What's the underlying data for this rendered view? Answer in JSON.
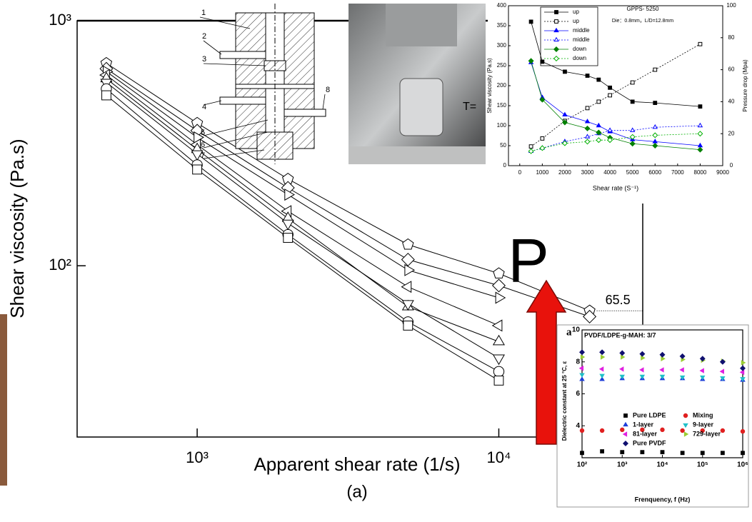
{
  "chart_data": [
    {
      "type": "line",
      "y_label": "Shear viscosity (Pa.s)",
      "x_label": "Apparent shear rate (1/s)",
      "caption": "(a)",
      "xscale": "log",
      "yscale": "log",
      "xlim": [
        400,
        30000
      ],
      "ylim": [
        20,
        1000
      ],
      "xticks": [
        {
          "value": 1000,
          "label": "10³"
        },
        {
          "value": 10000,
          "label": "10⁴"
        }
      ],
      "yticks": [
        {
          "value": 100,
          "label": "10²"
        },
        {
          "value": 1000,
          "label": "10³"
        }
      ],
      "x": [
        500,
        1000,
        2000,
        5000,
        10000,
        20000
      ],
      "series": [
        {
          "color": "#000000",
          "marker": "pentagon",
          "values": [
            671,
            382,
            226,
            122,
            93,
            65.5
          ]
        },
        {
          "color": "#000000",
          "marker": "diamond",
          "values": [
            637,
            356,
            208,
            106,
            83,
            62
          ]
        },
        {
          "color": "#000000",
          "marker": "triangle-right",
          "values": [
            620,
            334,
            195,
            96,
            74,
            null
          ]
        },
        {
          "color": "#000000",
          "marker": "triangle-left",
          "values": [
            600,
            312,
            167,
            82,
            57,
            null
          ]
        },
        {
          "color": "#000000",
          "marker": "triangle-up",
          "values": [
            580,
            298,
            156,
            68,
            49,
            null
          ]
        },
        {
          "color": "#000000",
          "marker": "triangle-down",
          "values": [
            560,
            286,
            149,
            70,
            42,
            null
          ]
        },
        {
          "color": "#000000",
          "marker": "circle",
          "values": [
            527,
            258,
            134,
            59,
            37,
            null
          ]
        },
        {
          "color": "#000000",
          "marker": "square",
          "values": [
            496,
            247,
            130,
            57,
            34,
            null
          ]
        }
      ]
    },
    {
      "type": "line",
      "title": "GPPS- 5250",
      "subtitle": "Die：0.8mm，L/D=12.8mm",
      "x_label": "Shear rate (S⁻¹)",
      "y_label": "Shear viscosity (Pa.s)",
      "y2_label": "Pressure drop (Mpa)",
      "xlim": [
        -500,
        9000
      ],
      "ylim": [
        0,
        400
      ],
      "y2lim": [
        0,
        100
      ],
      "xticks": [
        0,
        1000,
        2000,
        3000,
        4000,
        5000,
        6000,
        7000,
        8000,
        9000
      ],
      "yticks": [
        0,
        50,
        100,
        150,
        200,
        250,
        300,
        350,
        400
      ],
      "y2ticks": [
        0,
        20,
        40,
        60,
        80,
        100
      ],
      "x": [
        500,
        1000,
        2000,
        3000,
        3500,
        4000,
        5000,
        6000,
        8000
      ],
      "series": [
        {
          "name": "up",
          "color": "#000000",
          "marker": "square",
          "marker_fill": "filled",
          "values": [
            360,
            260,
            235,
            225,
            215,
            195,
            160,
            157,
            148
          ]
        },
        {
          "name": "up",
          "color": "#000000",
          "marker": "square",
          "marker_fill": "open",
          "axis": "y2",
          "values": [
            12,
            17,
            28,
            36,
            40,
            44,
            52,
            60,
            76
          ]
        },
        {
          "name": "middle",
          "color": "#0000ff",
          "marker": "triangle-up",
          "marker_fill": "filled",
          "values": [
            258,
            170,
            127,
            110,
            100,
            85,
            65,
            60,
            50
          ]
        },
        {
          "name": "middle",
          "color": "#0000ff",
          "marker": "triangle-up",
          "marker_fill": "open",
          "axis": "y2",
          "values": [
            9,
            11,
            15,
            18,
            20,
            22,
            22,
            24,
            25
          ]
        },
        {
          "name": "down",
          "color": "#008000",
          "marker": "diamond",
          "marker_fill": "filled",
          "values": [
            262,
            165,
            108,
            93,
            83,
            70,
            55,
            50,
            40
          ]
        },
        {
          "name": "down",
          "color": "#00b000",
          "marker": "diamond",
          "marker_fill": "open",
          "axis": "y2",
          "values": [
            9,
            11,
            14,
            15,
            16,
            16,
            18,
            19,
            20
          ]
        }
      ]
    },
    {
      "type": "scatter",
      "panel_letter": "a",
      "title": "PVDF/LDPE-g-MAH: 3/7",
      "x_label": "Frenquency, f (Hz)",
      "y_label": "Dielectric constant at 25 °C, ε",
      "xscale": "log",
      "xlim": [
        100,
        1000000
      ],
      "ylim": [
        2,
        10
      ],
      "xticks": [
        {
          "value": 100,
          "label": "10²"
        },
        {
          "value": 1000,
          "label": "10³"
        },
        {
          "value": 10000,
          "label": "10⁴"
        },
        {
          "value": 100000,
          "label": "10⁵"
        },
        {
          "value": 1000000,
          "label": "10⁶"
        }
      ],
      "yticks": [
        4,
        6,
        8,
        10
      ],
      "x": [
        100,
        316,
        1000,
        3162,
        10000,
        31623,
        100000,
        316228,
        1000000
      ],
      "series": [
        {
          "name": "Pure LDPE",
          "color": "#000000",
          "marker": "square",
          "values": [
            2.3,
            2.4,
            2.35,
            2.35,
            2.35,
            2.3,
            2.3,
            2.3,
            2.3
          ]
        },
        {
          "name": "Mixing",
          "color": "#e02020",
          "marker": "circle",
          "values": [
            3.7,
            3.7,
            3.75,
            3.75,
            3.75,
            3.7,
            3.7,
            3.7,
            3.65
          ]
        },
        {
          "name": "1-layer",
          "color": "#1f3fd8",
          "marker": "triangle-up",
          "values": [
            6.9,
            6.9,
            6.95,
            6.95,
            6.95,
            6.95,
            6.9,
            6.9,
            6.85
          ]
        },
        {
          "name": "9-layer",
          "color": "#20c0c8",
          "marker": "triangle-down",
          "values": [
            7.2,
            7.15,
            7.1,
            7.1,
            7.1,
            7.05,
            7.05,
            7.0,
            6.95
          ]
        },
        {
          "name": "81-layer",
          "color": "#e020e0",
          "marker": "triangle-left",
          "values": [
            7.6,
            7.55,
            7.55,
            7.5,
            7.5,
            7.5,
            7.45,
            7.4,
            7.35
          ]
        },
        {
          "name": "729-layer",
          "color": "#9acd32",
          "marker": "triangle-right",
          "values": [
            8.3,
            8.3,
            8.3,
            8.25,
            8.2,
            8.15,
            8.1,
            8.05,
            7.95
          ]
        },
        {
          "name": "Pure PVDF",
          "color": "#101070",
          "marker": "diamond",
          "values": [
            8.6,
            8.6,
            8.55,
            8.5,
            8.45,
            8.35,
            8.2,
            8.0,
            7.6
          ]
        }
      ]
    }
  ],
  "overlay_text": {
    "letter": "P",
    "fragment": "T="
  },
  "schematic": {
    "labels": [
      "1",
      "2",
      "3",
      "4",
      "5",
      "6",
      "7",
      "8"
    ]
  }
}
